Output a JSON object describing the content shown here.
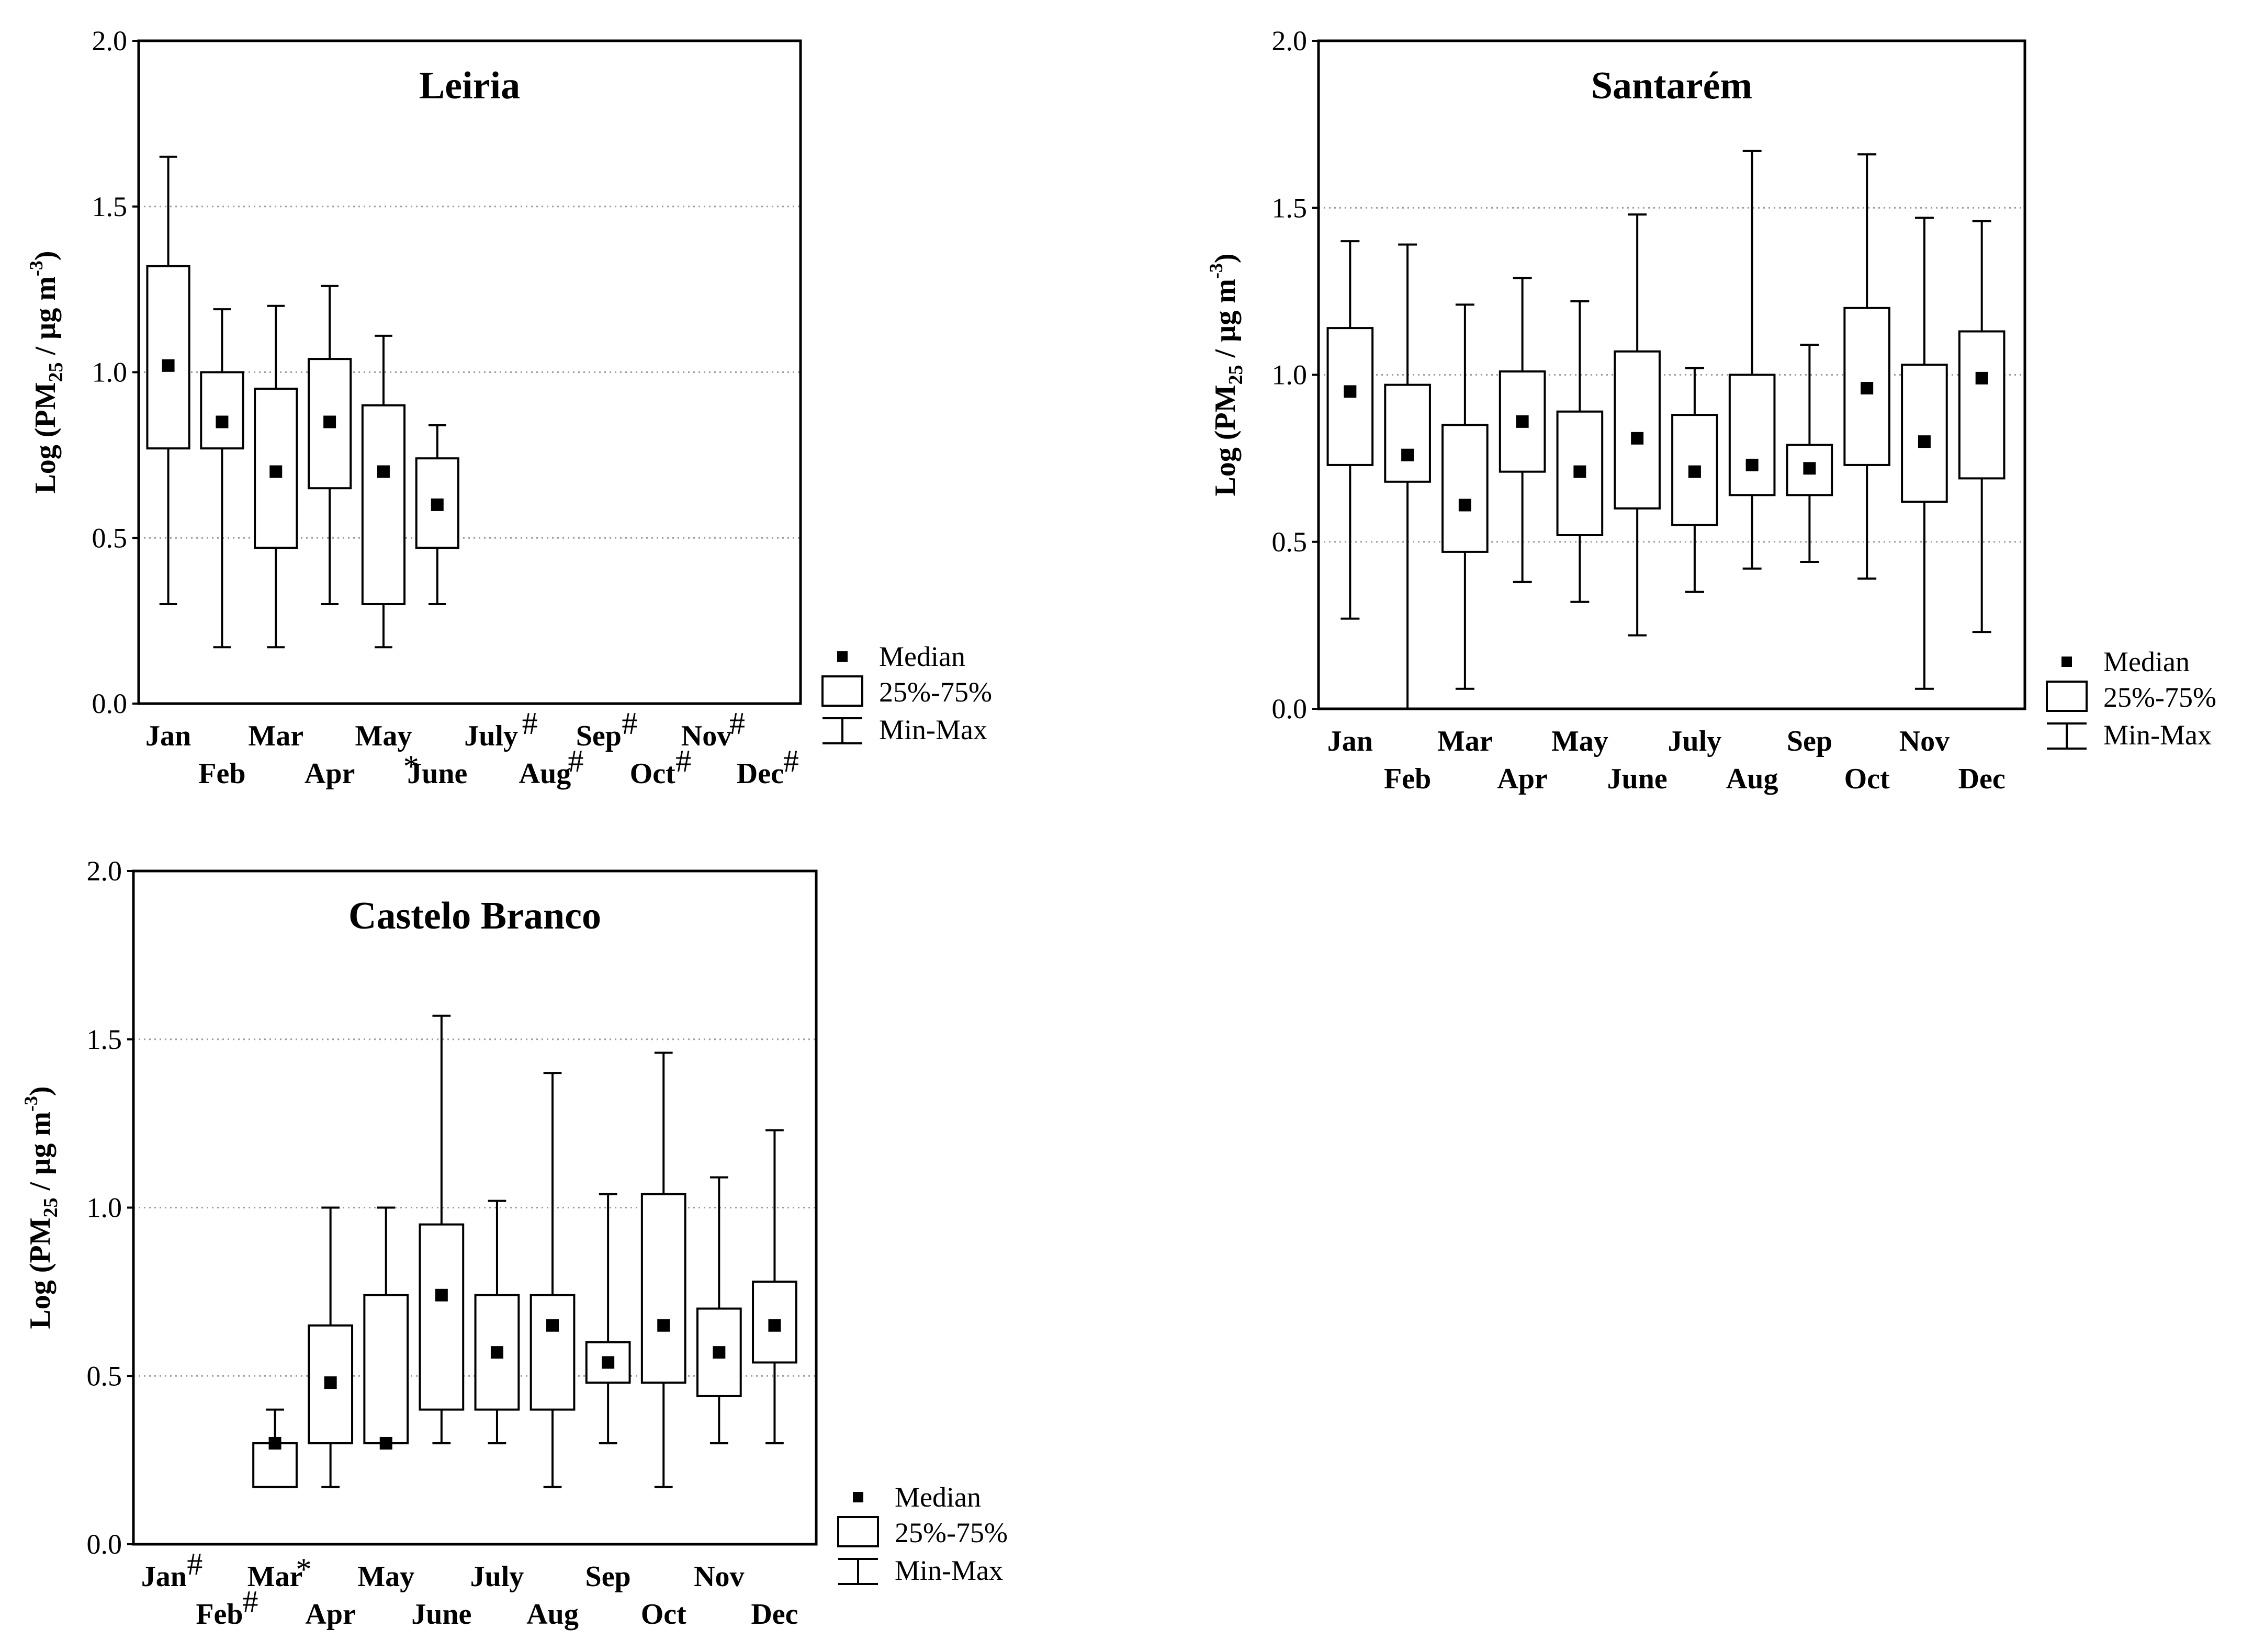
{
  "chart_data": [
    {
      "type": "box",
      "title": "Leiria",
      "ylabel": "Log (PM25 / µg m-3)",
      "ylabel_parts": {
        "prefix": "Log (PM",
        "subscript": "25",
        "middle": " / µg m",
        "superscript": "-3",
        "suffix": ")"
      },
      "ylim": [
        0.0,
        2.0
      ],
      "yticks": [
        "0.0",
        "0.5",
        "1.0",
        "1.5",
        "2.0"
      ],
      "grid": true,
      "legend_placement": "bottom-right outside",
      "legend": {
        "median": "Median",
        "box": "25%-75%",
        "whisker": "Min-Max"
      },
      "months": [
        "Jan",
        "Feb",
        "Mar",
        "Apr",
        "May",
        "June",
        "July",
        "Aug",
        "Sep",
        "Oct",
        "Nov",
        "Dec"
      ],
      "markers": [
        "",
        "",
        "",
        "",
        "",
        "*",
        "#",
        "#",
        "#",
        "#",
        "#",
        "#"
      ],
      "boxes": [
        {
          "month": "Jan",
          "min": 0.3,
          "q1": 0.77,
          "median": 1.02,
          "q3": 1.32,
          "max": 1.65
        },
        {
          "month": "Feb",
          "min": 0.17,
          "q1": 0.77,
          "median": 0.85,
          "q3": 1.0,
          "max": 1.19
        },
        {
          "month": "Mar",
          "min": 0.17,
          "q1": 0.47,
          "median": 0.7,
          "q3": 0.95,
          "max": 1.2
        },
        {
          "month": "Apr",
          "min": 0.3,
          "q1": 0.65,
          "median": 0.85,
          "q3": 1.04,
          "max": 1.26
        },
        {
          "month": "May",
          "min": 0.17,
          "q1": 0.3,
          "median": 0.7,
          "q3": 0.9,
          "max": 1.11
        },
        {
          "month": "June",
          "min": 0.3,
          "q1": 0.47,
          "median": 0.6,
          "q3": 0.74,
          "max": 0.84
        }
      ]
    },
    {
      "type": "box",
      "title": "Santarém",
      "ylabel": "Log (PM25 / µg m-3)",
      "ylabel_parts": {
        "prefix": "Log (PM",
        "subscript": "25",
        "middle": " / µg m",
        "superscript": "-3",
        "suffix": ")"
      },
      "ylim": [
        0.0,
        2.0
      ],
      "yticks": [
        "0.0",
        "0.5",
        "1.0",
        "1.5",
        "2.0"
      ],
      "grid": true,
      "legend_placement": "bottom-right outside",
      "legend": {
        "median": "Median",
        "box": "25%-75%",
        "whisker": "Min-Max"
      },
      "months": [
        "Jan",
        "Feb",
        "Mar",
        "Apr",
        "May",
        "June",
        "July",
        "Aug",
        "Sep",
        "Oct",
        "Nov",
        "Dec"
      ],
      "markers": [
        "",
        "",
        "",
        "",
        "",
        "",
        "",
        "",
        "",
        "",
        "",
        ""
      ],
      "boxes": [
        {
          "month": "Jan",
          "min": 0.27,
          "q1": 0.73,
          "median": 0.95,
          "q3": 1.14,
          "max": 1.4
        },
        {
          "month": "Feb",
          "min": 0.0,
          "q1": 0.68,
          "median": 0.76,
          "q3": 0.97,
          "max": 1.39
        },
        {
          "month": "Mar",
          "min": 0.06,
          "q1": 0.47,
          "median": 0.61,
          "q3": 0.85,
          "max": 1.21
        },
        {
          "month": "Apr",
          "min": 0.38,
          "q1": 0.71,
          "median": 0.86,
          "q3": 1.01,
          "max": 1.29
        },
        {
          "month": "May",
          "min": 0.32,
          "q1": 0.52,
          "median": 0.71,
          "q3": 0.89,
          "max": 1.22
        },
        {
          "month": "June",
          "min": 0.22,
          "q1": 0.6,
          "median": 0.81,
          "q3": 1.07,
          "max": 1.48
        },
        {
          "month": "July",
          "min": 0.35,
          "q1": 0.55,
          "median": 0.71,
          "q3": 0.88,
          "max": 1.02
        },
        {
          "month": "Aug",
          "min": 0.42,
          "q1": 0.64,
          "median": 0.73,
          "q3": 1.0,
          "max": 1.67
        },
        {
          "month": "Sep",
          "min": 0.44,
          "q1": 0.64,
          "median": 0.72,
          "q3": 0.79,
          "max": 1.09
        },
        {
          "month": "Oct",
          "min": 0.39,
          "q1": 0.73,
          "median": 0.96,
          "q3": 1.2,
          "max": 1.66
        },
        {
          "month": "Nov",
          "min": 0.06,
          "q1": 0.62,
          "median": 0.8,
          "q3": 1.03,
          "max": 1.47
        },
        {
          "month": "Dec",
          "min": 0.23,
          "q1": 0.69,
          "median": 0.99,
          "q3": 1.13,
          "max": 1.46
        }
      ]
    },
    {
      "type": "box",
      "title": "Castelo Branco",
      "ylabel": "Log (PM25 / µg m-3)",
      "ylabel_parts": {
        "prefix": "Log (PM",
        "subscript": "25",
        "middle": " / µg m",
        "superscript": "-3",
        "suffix": ")"
      },
      "ylim": [
        0.0,
        2.0
      ],
      "yticks": [
        "0.0",
        "0.5",
        "1.0",
        "1.5",
        "2.0"
      ],
      "grid": true,
      "legend_placement": "bottom-right outside",
      "legend": {
        "median": "Median",
        "box": "25%-75%",
        "whisker": "Min-Max"
      },
      "months": [
        "Jan",
        "Feb",
        "Mar",
        "Apr",
        "May",
        "June",
        "July",
        "Aug",
        "Sep",
        "Oct",
        "Nov",
        "Dec"
      ],
      "markers": [
        "#",
        "#",
        "*",
        "",
        "",
        "",
        "",
        "",
        "",
        "",
        "",
        ""
      ],
      "boxes": [
        {
          "month": "Mar",
          "min": 0.17,
          "q1": 0.17,
          "median": 0.3,
          "q3": 0.3,
          "max": 0.4
        },
        {
          "month": "Apr",
          "min": 0.17,
          "q1": 0.3,
          "median": 0.48,
          "q3": 0.65,
          "max": 1.0
        },
        {
          "month": "May",
          "min": 0.3,
          "q1": 0.3,
          "median": 0.3,
          "q3": 0.74,
          "max": 1.0
        },
        {
          "month": "June",
          "min": 0.3,
          "q1": 0.4,
          "median": 0.74,
          "q3": 0.95,
          "max": 1.57
        },
        {
          "month": "July",
          "min": 0.3,
          "q1": 0.4,
          "median": 0.57,
          "q3": 0.74,
          "max": 1.02
        },
        {
          "month": "Aug",
          "min": 0.17,
          "q1": 0.4,
          "median": 0.65,
          "q3": 0.74,
          "max": 1.4
        },
        {
          "month": "Sep",
          "min": 0.3,
          "q1": 0.48,
          "median": 0.54,
          "q3": 0.6,
          "max": 1.04
        },
        {
          "month": "Oct",
          "min": 0.17,
          "q1": 0.48,
          "median": 0.65,
          "q3": 1.04,
          "max": 1.46
        },
        {
          "month": "Nov",
          "min": 0.3,
          "q1": 0.44,
          "median": 0.57,
          "q3": 0.7,
          "max": 1.09
        },
        {
          "month": "Dec",
          "min": 0.3,
          "q1": 0.54,
          "median": 0.65,
          "q3": 0.78,
          "max": 1.23
        }
      ]
    }
  ]
}
